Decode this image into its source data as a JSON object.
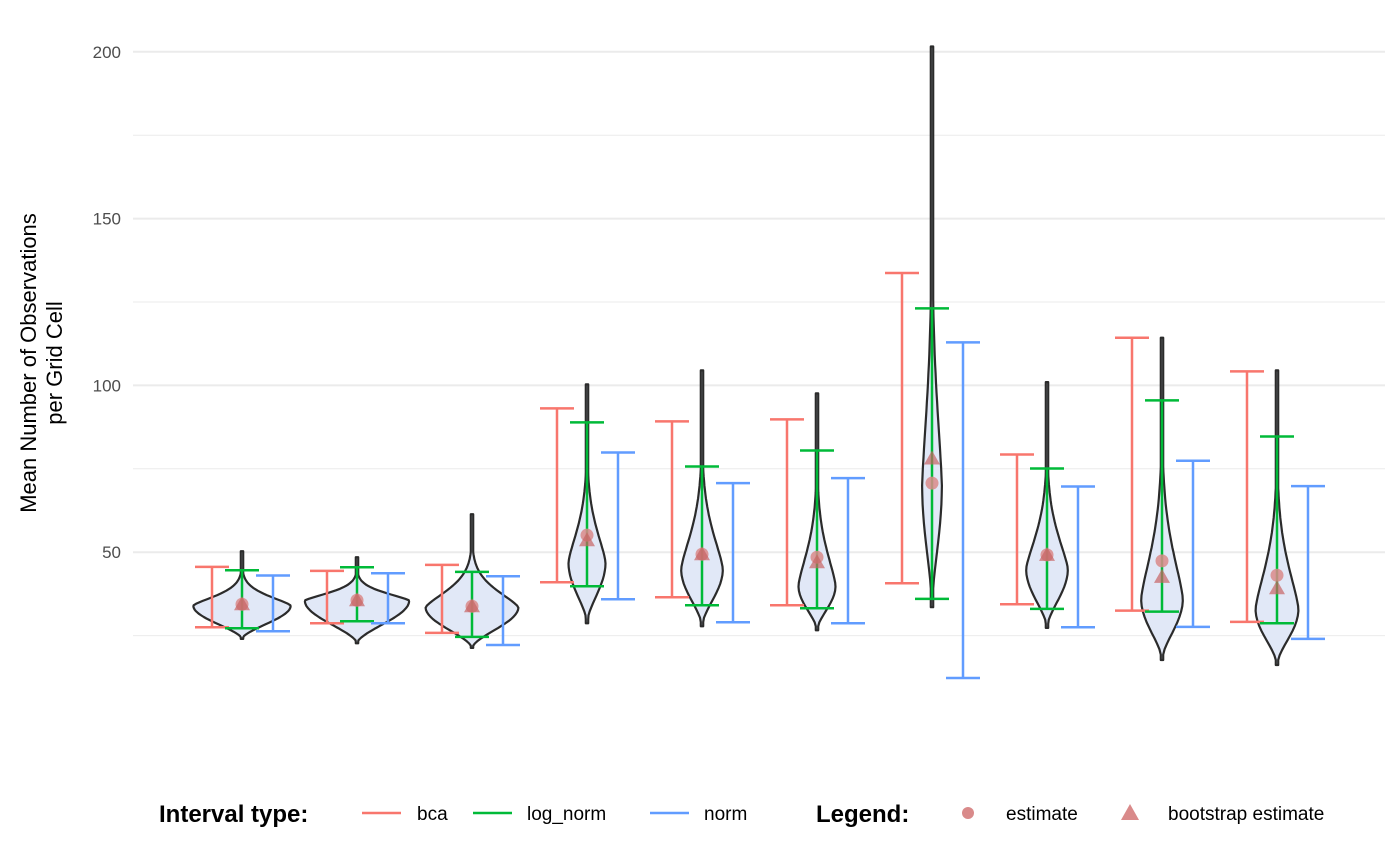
{
  "chart_data": {
    "type": "violin",
    "title": "",
    "xlabel": "",
    "ylabel": "Mean Number of Observations\nper Grid Cell",
    "ylabel_lines": [
      "Mean Number of Observations",
      "per Grid Cell"
    ],
    "ylim": [
      0,
      205
    ],
    "yticks": [
      50,
      100,
      150,
      200
    ],
    "minor_gridlines": [
      25,
      75,
      125,
      175
    ],
    "grid": true,
    "legend_position": "bottom",
    "colors": {
      "bca": "#F8766D",
      "log_norm": "#00BA38",
      "norm": "#619CFF",
      "violin_fill": "#E1E8F7",
      "violin_stroke": "#2b2b2b",
      "estimate": "#D98A8A",
      "grid": "#EBEBEB"
    },
    "groups": [
      {
        "id": 1,
        "violin": {
          "min": 24.0,
          "max": 50.3,
          "widest": 34.0,
          "halfwidth": 0.84
        },
        "estimate": 34.4,
        "bootstrap_estimate": 34.4,
        "bca": [
          27.5,
          45.6
        ],
        "log_norm": [
          27.2,
          44.6
        ],
        "norm": [
          26.3,
          43.0
        ]
      },
      {
        "id": 2,
        "violin": {
          "min": 22.7,
          "max": 48.5,
          "widest": 35.5,
          "halfwidth": 0.9
        },
        "estimate": 35.6,
        "bootstrap_estimate": 35.6,
        "bca": [
          28.7,
          44.4
        ],
        "log_norm": [
          29.3,
          45.5
        ],
        "norm": [
          28.7,
          43.7
        ]
      },
      {
        "id": 3,
        "violin": {
          "min": 21.3,
          "max": 61.4,
          "widest": 33.5,
          "halfwidth": 0.8
        },
        "estimate": 33.8,
        "bootstrap_estimate": 33.8,
        "bca": [
          25.8,
          46.2
        ],
        "log_norm": [
          24.6,
          44.1
        ],
        "norm": [
          22.2,
          42.8
        ]
      },
      {
        "id": 4,
        "violin": {
          "min": 28.7,
          "max": 100.3,
          "widest": 47.0,
          "halfwidth": 0.32
        },
        "estimate": 55.1,
        "bootstrap_estimate": 53.6,
        "bca": [
          41.0,
          93.1
        ],
        "log_norm": [
          39.8,
          88.9
        ],
        "norm": [
          35.9,
          79.9
        ]
      },
      {
        "id": 5,
        "violin": {
          "min": 27.8,
          "max": 104.5,
          "widest": 45.0,
          "halfwidth": 0.36
        },
        "estimate": 49.4,
        "bootstrap_estimate": 49.4,
        "bca": [
          36.5,
          89.2
        ],
        "log_norm": [
          34.1,
          75.7
        ],
        "norm": [
          29.0,
          70.7
        ]
      },
      {
        "id": 6,
        "violin": {
          "min": 26.6,
          "max": 97.6,
          "widest": 40.0,
          "halfwidth": 0.32
        },
        "estimate": 48.5,
        "bootstrap_estimate": 47.0,
        "bca": [
          34.1,
          89.8
        ],
        "log_norm": [
          33.2,
          80.5
        ],
        "norm": [
          28.7,
          72.2
        ]
      },
      {
        "id": 7,
        "violin": {
          "min": 33.5,
          "max": 201.6,
          "widest": 70.0,
          "halfwidth": 0.17
        },
        "estimate": 70.7,
        "bootstrap_estimate": 78.1,
        "bca": [
          40.7,
          133.7
        ],
        "log_norm": [
          36.0,
          123.1
        ],
        "norm": [
          12.3,
          112.9
        ]
      },
      {
        "id": 8,
        "violin": {
          "min": 27.3,
          "max": 101.0,
          "widest": 45.0,
          "halfwidth": 0.36
        },
        "estimate": 49.2,
        "bootstrap_estimate": 49.2,
        "bca": [
          34.4,
          79.3
        ],
        "log_norm": [
          33.0,
          75.1
        ],
        "norm": [
          27.5,
          69.7
        ]
      },
      {
        "id": 9,
        "violin": {
          "min": 17.7,
          "max": 114.3,
          "widest": 36.0,
          "halfwidth": 0.36
        },
        "estimate": 47.4,
        "bootstrap_estimate": 42.6,
        "bca": [
          32.5,
          114.3
        ],
        "log_norm": [
          32.2,
          95.5
        ],
        "norm": [
          27.6,
          77.4
        ]
      },
      {
        "id": 10,
        "violin": {
          "min": 16.2,
          "max": 104.5,
          "widest": 33.0,
          "halfwidth": 0.37
        },
        "estimate": 43.1,
        "bootstrap_estimate": 39.2,
        "bca": [
          29.1,
          104.2
        ],
        "log_norm": [
          28.7,
          84.7
        ],
        "norm": [
          24.0,
          69.8
        ]
      }
    ]
  },
  "legend": {
    "interval_title": "Interval type:",
    "intervals": [
      {
        "key": "bca",
        "label": "bca"
      },
      {
        "key": "log_norm",
        "label": "log_norm"
      },
      {
        "key": "norm",
        "label": "norm"
      }
    ],
    "points_title": "Legend:",
    "points": [
      {
        "key": "estimate",
        "label": "estimate",
        "shape": "circle"
      },
      {
        "key": "bootstrap_estimate",
        "label": "bootstrap estimate",
        "shape": "triangle"
      }
    ]
  }
}
